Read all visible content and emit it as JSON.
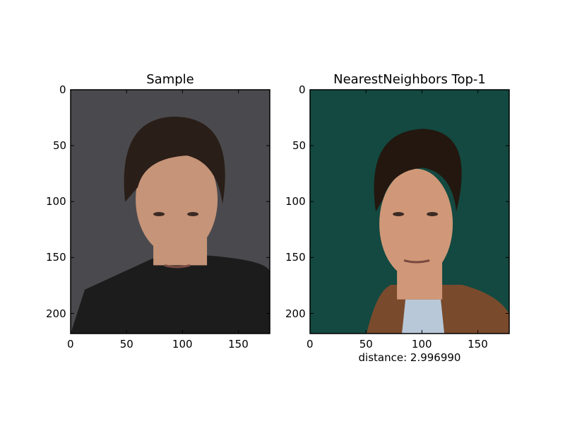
{
  "chart_data": [
    {
      "type": "image",
      "title": "Sample",
      "xlim": [
        0,
        178
      ],
      "ylim": [
        218,
        0
      ],
      "xticks": [
        0,
        50,
        100,
        150
      ],
      "yticks": [
        0,
        50,
        100,
        150,
        200
      ],
      "image_colors": {
        "background": "#4a4a4e",
        "hair": "#2a1e18",
        "skin": "#c69478",
        "shirt": "#1c1c1c"
      }
    },
    {
      "type": "image",
      "title": "NearestNeighbors Top-1",
      "xlim": [
        0,
        178
      ],
      "ylim": [
        218,
        0
      ],
      "xticks": [
        0,
        50,
        100,
        150
      ],
      "yticks": [
        0,
        50,
        100,
        150,
        200
      ],
      "annotation": "distance: 2.996990",
      "image_colors": {
        "background": "#134940",
        "hair": "#23170f",
        "skin": "#d09878",
        "jacket": "#7a4a2c",
        "shirt": "#b8c8d8"
      }
    }
  ]
}
